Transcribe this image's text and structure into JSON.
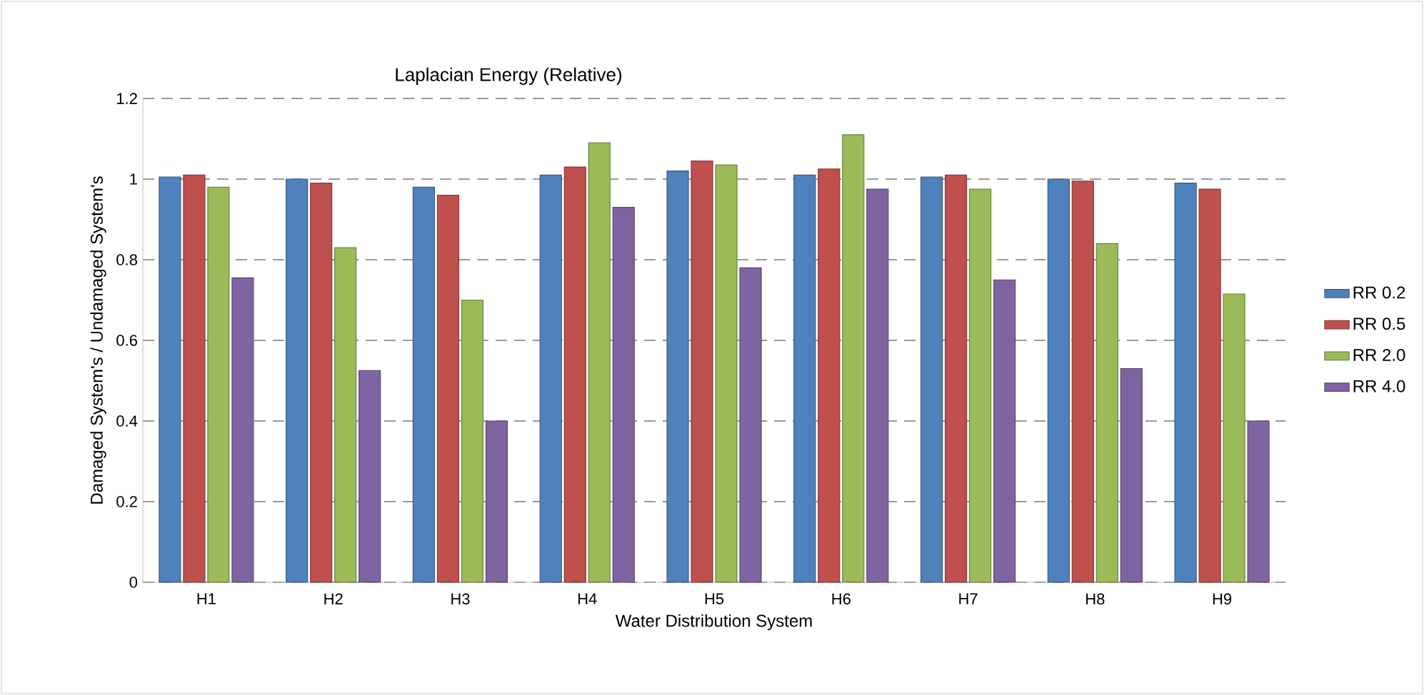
{
  "chart_data": {
    "type": "bar",
    "title": "Laplacian Energy (Relative)",
    "xlabel": "Water Distribution System",
    "ylabel": "Damaged System's / Undamaged System's",
    "categories": [
      "H1",
      "H2",
      "H3",
      "H4",
      "H5",
      "H6",
      "H7",
      "H8",
      "H9"
    ],
    "series": [
      {
        "name": "RR 0.2",
        "color": "#4f81bd",
        "values": [
          1.005,
          1.0,
          0.98,
          1.01,
          1.02,
          1.01,
          1.005,
          1.0,
          0.99
        ]
      },
      {
        "name": "RR 0.5",
        "color": "#c0504d",
        "values": [
          1.01,
          0.99,
          0.96,
          1.03,
          1.045,
          1.025,
          1.01,
          0.995,
          0.975
        ]
      },
      {
        "name": "RR 2.0",
        "color": "#9bbb59",
        "values": [
          0.98,
          0.83,
          0.7,
          1.09,
          1.035,
          1.11,
          0.975,
          0.84,
          0.715
        ]
      },
      {
        "name": "RR 4.0",
        "color": "#8064a2",
        "values": [
          0.755,
          0.525,
          0.4,
          0.93,
          0.78,
          0.975,
          0.75,
          0.53,
          0.4
        ]
      }
    ],
    "ylim": [
      0,
      1.2
    ],
    "yticks": [
      0,
      0.2,
      0.4,
      0.6,
      0.8,
      1,
      1.2
    ],
    "grid": "y",
    "legend": "right"
  }
}
